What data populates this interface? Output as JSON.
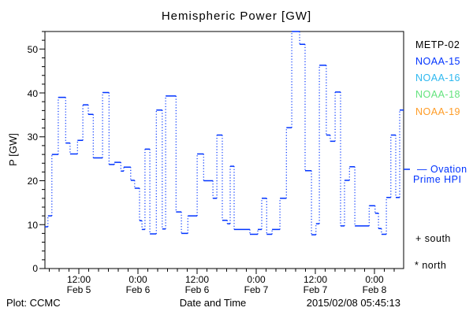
{
  "title": "Hemispheric Power [GW]",
  "colors": {
    "frame": "#000000",
    "data_line": "#0033ff",
    "metp02": "#000000",
    "noaa15": "#0033ff",
    "noaa16": "#2eb8f0",
    "noaa18": "#63e37d",
    "noaa19": "#ff9c26"
  },
  "legend": {
    "satellites": [
      {
        "label": "METP-02",
        "color": "#000000"
      },
      {
        "label": "NOAA-15",
        "color": "#0033ff"
      },
      {
        "label": "NOAA-16",
        "color": "#2eb8f0"
      },
      {
        "label": "NOAA-18",
        "color": "#63e37d"
      },
      {
        "label": "NOAA-19",
        "color": "#ff9c26"
      }
    ],
    "ovation": {
      "line1": "— Ovation",
      "line2": "Prime HPI",
      "color": "#0033ff"
    },
    "hemisphere_markers": [
      {
        "symbol": "+",
        "label": "south"
      },
      {
        "symbol": "*",
        "label": "north"
      }
    ]
  },
  "footer": {
    "left": "Plot: CCMC",
    "center": "Date and Time",
    "right": "2015/02/08 05:45:13"
  },
  "chart_data": {
    "type": "line",
    "subtype": "step-plot, horizontal segments solid, vertical connectors dotted",
    "title": "Hemispheric Power [GW]",
    "xlabel": "Date and Time",
    "ylabel": "P [GW]",
    "ylim": [
      0,
      54
    ],
    "yticks": [
      "0",
      "10",
      "20",
      "30",
      "40",
      "50"
    ],
    "y_minor_step_gw": 2,
    "grid": false,
    "legend_position": "right",
    "xticks": [
      {
        "time": "12:00",
        "date": "Feb 5"
      },
      {
        "time": "0:00",
        "date": "Feb 6"
      },
      {
        "time": "12:00",
        "date": "Feb 6"
      },
      {
        "time": "0:00",
        "date": "Feb 7"
      },
      {
        "time": "12:00",
        "date": "Feb 7"
      },
      {
        "time": "0:00",
        "date": "Feb 8"
      }
    ],
    "x_span_hours": 72.8,
    "x_major_first_hour": 6.88,
    "x_major_interval_hours": 12,
    "x_minor_first_hour": 0.88,
    "x_minor_interval_hours": 2,
    "series": [
      {
        "name": "Ovation Prime HPI",
        "color": "#0033ff",
        "units": "GW",
        "x_units": "hours from left edge of plot",
        "t_end": 72.8,
        "steps": [
          [
            0.0,
            9.5
          ],
          [
            0.6,
            12.0
          ],
          [
            1.4,
            26.0
          ],
          [
            2.7,
            39.0
          ],
          [
            4.2,
            28.6
          ],
          [
            5.1,
            26.1
          ],
          [
            6.6,
            29.2
          ],
          [
            7.7,
            37.3
          ],
          [
            8.8,
            35.1
          ],
          [
            9.8,
            25.2
          ],
          [
            11.7,
            40.1
          ],
          [
            13.0,
            23.7
          ],
          [
            14.1,
            24.2
          ],
          [
            15.4,
            22.2
          ],
          [
            16.0,
            23.1
          ],
          [
            17.4,
            20.1
          ],
          [
            18.2,
            18.3
          ],
          [
            19.2,
            10.9
          ],
          [
            19.7,
            8.9
          ],
          [
            20.3,
            27.2
          ],
          [
            21.3,
            7.9
          ],
          [
            22.6,
            36.1
          ],
          [
            23.8,
            9.0
          ],
          [
            24.5,
            39.3
          ],
          [
            26.6,
            12.9
          ],
          [
            27.7,
            8.0
          ],
          [
            29.0,
            12.0
          ],
          [
            30.9,
            26.1
          ],
          [
            32.2,
            20.0
          ],
          [
            34.1,
            16.0
          ],
          [
            34.9,
            30.4
          ],
          [
            36.0,
            11.0
          ],
          [
            37.0,
            10.2
          ],
          [
            37.6,
            23.3
          ],
          [
            38.4,
            8.9
          ],
          [
            41.6,
            7.8
          ],
          [
            43.2,
            8.9
          ],
          [
            44.0,
            16.0
          ],
          [
            45.0,
            7.8
          ],
          [
            46.1,
            8.9
          ],
          [
            47.7,
            16.0
          ],
          [
            49.0,
            32.1
          ],
          [
            50.1,
            54.0
          ],
          [
            51.7,
            51.1
          ],
          [
            52.8,
            22.3
          ],
          [
            54.1,
            7.7
          ],
          [
            55.0,
            10.2
          ],
          [
            55.7,
            46.3
          ],
          [
            57.1,
            30.4
          ],
          [
            57.9,
            29.0
          ],
          [
            58.9,
            40.2
          ],
          [
            60.0,
            9.7
          ],
          [
            60.8,
            20.1
          ],
          [
            61.8,
            23.2
          ],
          [
            62.9,
            9.7
          ],
          [
            65.8,
            14.3
          ],
          [
            67.0,
            12.6
          ],
          [
            67.7,
            9.1
          ],
          [
            68.3,
            7.8
          ],
          [
            69.3,
            16.2
          ],
          [
            70.2,
            30.4
          ],
          [
            71.2,
            16.2
          ],
          [
            72.0,
            36.1
          ]
        ]
      }
    ]
  }
}
